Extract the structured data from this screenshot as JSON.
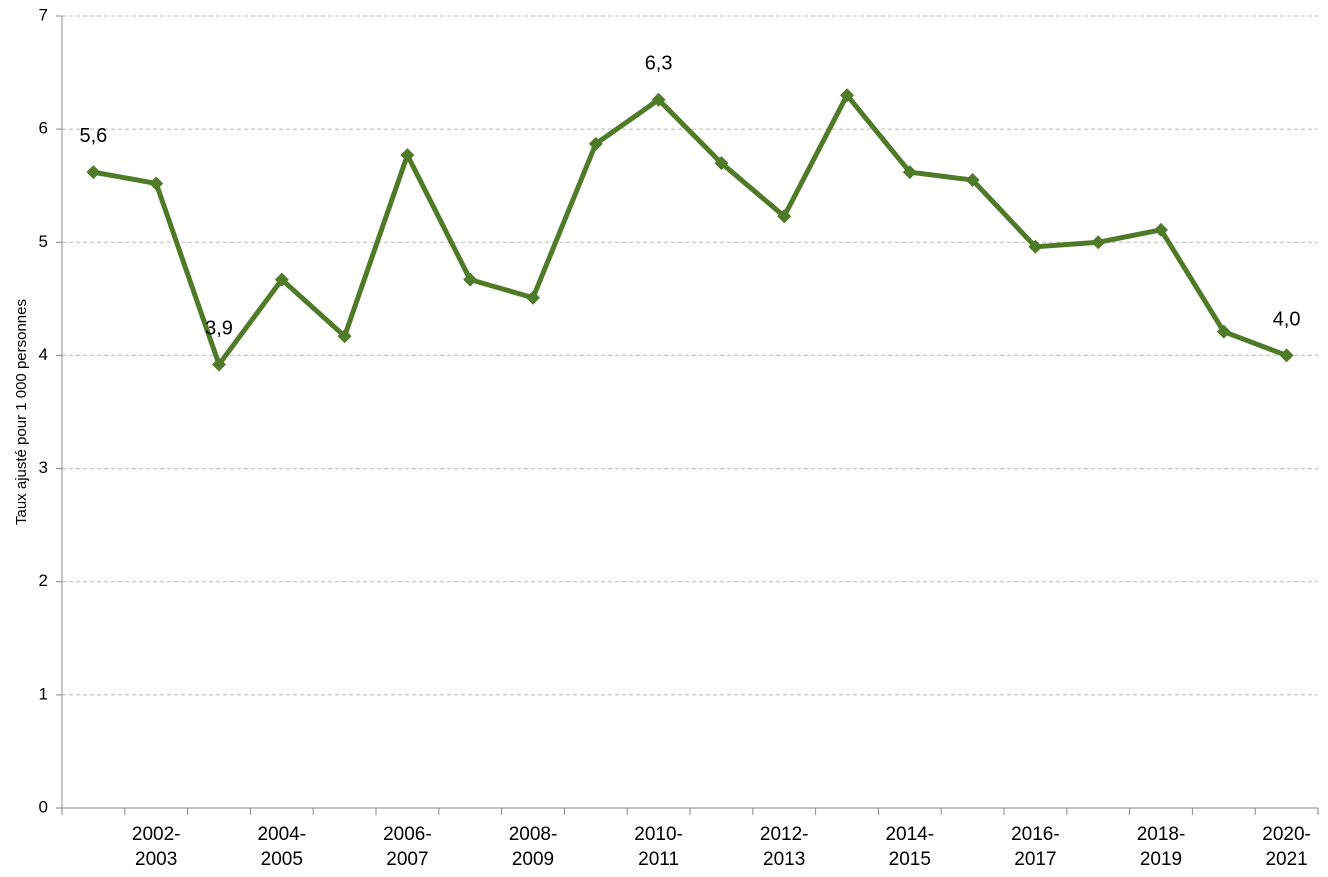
{
  "chart_data": {
    "type": "line",
    "y_label": "Taux ajusté pour 1 000 personnes",
    "categories": [
      null,
      "2002-2003",
      null,
      "2004-2005",
      null,
      "2006-2007",
      null,
      "2008-2009",
      null,
      "2010-2011",
      null,
      "2012-2013",
      null,
      "2014-2015",
      null,
      "2016-2017",
      null,
      "2018-2019",
      null,
      "2020-2021"
    ],
    "series": [
      {
        "color": "#4f7a28",
        "values": [
          5.62,
          5.52,
          3.92,
          4.67,
          4.17,
          5.77,
          4.67,
          4.51,
          5.87,
          6.26,
          5.7,
          5.23,
          6.3,
          5.62,
          5.55,
          4.96,
          5.0,
          5.11,
          4.21,
          4.0
        ],
        "value_labels": [
          "5,6",
          null,
          "3,9",
          null,
          null,
          null,
          null,
          null,
          null,
          "6,3",
          null,
          null,
          null,
          null,
          null,
          null,
          null,
          null,
          null,
          "4,0"
        ]
      }
    ],
    "ylim": [
      0,
      7
    ],
    "yticks": [
      0,
      1,
      2,
      3,
      4,
      5,
      6,
      7
    ],
    "grid": true
  }
}
